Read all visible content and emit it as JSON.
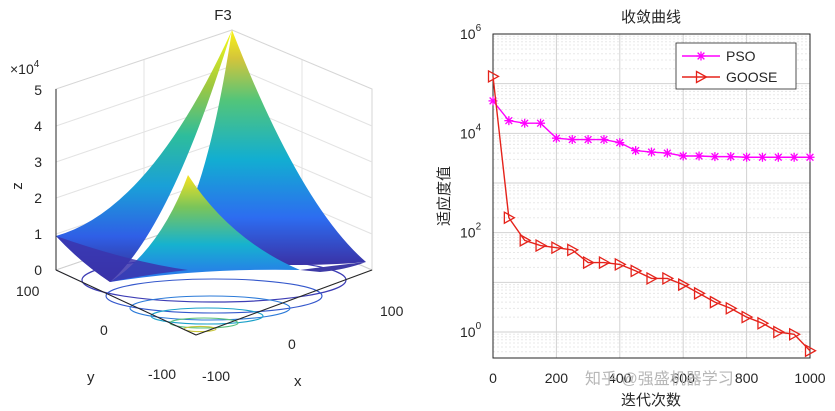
{
  "left_plot": {
    "title": "F3",
    "z_scale": "×10",
    "z_scale_exp": "4",
    "z_ticks": [
      "0",
      "1",
      "2",
      "3",
      "4",
      "5"
    ],
    "y_ticks": [
      "100",
      "0",
      "-100"
    ],
    "x_ticks": [
      "-100",
      "0",
      "100"
    ],
    "xlabel": "x",
    "ylabel": "y",
    "zlabel": "z"
  },
  "chart_data": [
    {
      "type": "surface",
      "title": "F3",
      "xlabel": "x",
      "ylabel": "y",
      "zlabel": "z",
      "xlim": [
        -100,
        100
      ],
      "ylim": [
        -100,
        100
      ],
      "zlim": [
        0,
        50000
      ],
      "z_multiplier": "×10^4",
      "x_ticks": [
        -100,
        0,
        100
      ],
      "y_ticks": [
        -100,
        0,
        100
      ],
      "z_ticks": [
        0,
        1,
        2,
        3,
        4,
        5
      ],
      "colormap": [
        "#3e26a8",
        "#2f6bf4",
        "#11b0d2",
        "#37c792",
        "#a7c83a",
        "#f6c833",
        "#f9fb15"
      ]
    },
    {
      "type": "line",
      "title": "收敛曲线",
      "xlabel": "迭代次数",
      "ylabel": "适应度值",
      "xlim": [
        0,
        1000
      ],
      "ylim": [
        0.3,
        1000000
      ],
      "yscale": "log",
      "x_ticks": [
        "0",
        "200",
        "400",
        "600",
        "800",
        "1000"
      ],
      "y_ticks": [
        {
          "base": "10",
          "exp": "0"
        },
        {
          "base": "10",
          "exp": "2"
        },
        {
          "base": "10",
          "exp": "4"
        },
        {
          "base": "10",
          "exp": "6"
        }
      ],
      "legend_position": "top-right",
      "grid": true,
      "series": [
        {
          "name": "PSO",
          "color": "#ff00ff",
          "marker": "asterisk",
          "x": [
            0,
            50,
            100,
            150,
            200,
            250,
            300,
            350,
            400,
            450,
            500,
            550,
            600,
            650,
            700,
            750,
            800,
            850,
            900,
            950,
            1000
          ],
          "values": [
            45000,
            18000,
            16000,
            16000,
            8000,
            7500,
            7500,
            7500,
            6500,
            4500,
            4200,
            4000,
            3500,
            3500,
            3400,
            3400,
            3300,
            3300,
            3300,
            3300,
            3300
          ]
        },
        {
          "name": "GOOSE",
          "color": "#e5231b",
          "marker": "triangle-right",
          "x": [
            0,
            50,
            100,
            150,
            200,
            250,
            300,
            350,
            400,
            450,
            500,
            550,
            600,
            650,
            700,
            750,
            800,
            850,
            900,
            950,
            1000
          ],
          "values": [
            140000,
            200,
            70,
            55,
            50,
            45,
            25,
            25,
            23,
            17,
            12,
            12,
            9,
            6,
            4,
            3,
            2,
            1.5,
            1.0,
            0.9,
            0.42
          ]
        }
      ]
    }
  ],
  "watermark": "知乎 @强盛机器学习"
}
